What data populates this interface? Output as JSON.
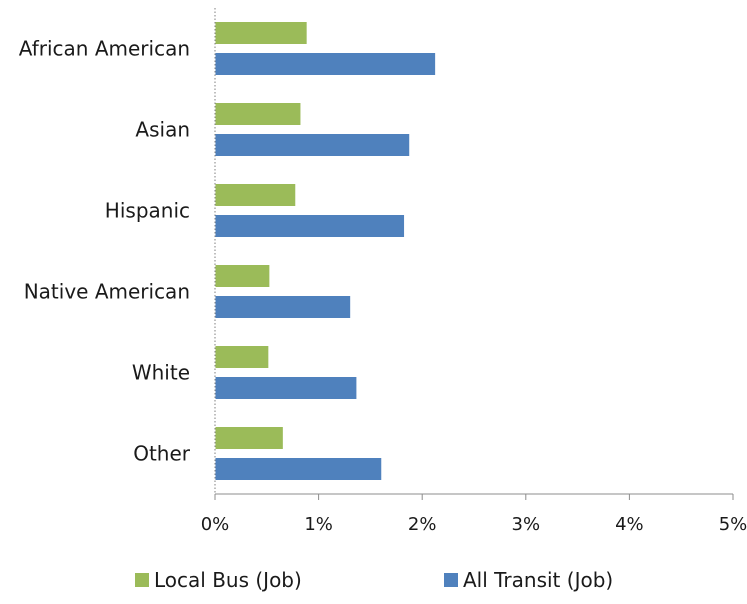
{
  "chart_data": {
    "type": "bar",
    "orientation": "horizontal",
    "categories": [
      "African American",
      "Asian",
      "Hispanic",
      "Native American",
      "White",
      "Other"
    ],
    "series": [
      {
        "name": "Local Bus (Job)",
        "color": "#9bbb59",
        "values": [
          0.88,
          0.82,
          0.77,
          0.52,
          0.51,
          0.65
        ]
      },
      {
        "name": "All Transit (Job)",
        "color": "#4f81bd",
        "values": [
          2.12,
          1.87,
          1.82,
          1.3,
          1.36,
          1.6
        ]
      }
    ],
    "xlim": [
      0,
      5
    ],
    "x_ticks": [
      "0%",
      "1%",
      "2%",
      "3%",
      "4%",
      "5%"
    ],
    "x_unit": "percent",
    "grid": false,
    "legend_position": "bottom"
  }
}
